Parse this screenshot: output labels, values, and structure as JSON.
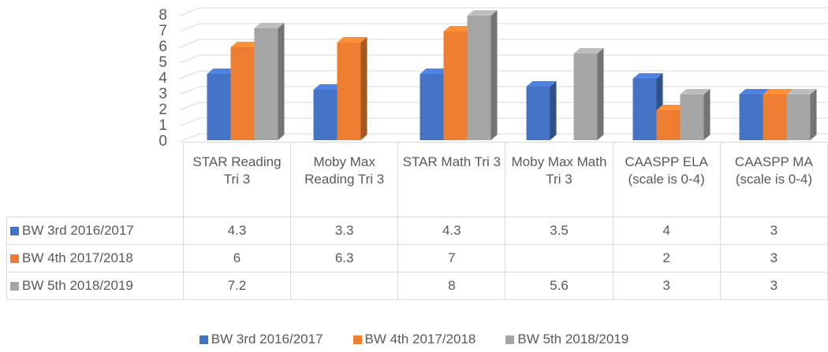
{
  "chart_data": {
    "type": "bar3d",
    "categories": [
      "STAR Reading Tri 3",
      "Moby Max Reading Tri 3",
      "STAR Math Tri 3",
      "Moby Max Math Tri 3",
      "CAASPP ELA (scale is 0-4)",
      "CAASPP MA (scale is 0-4)"
    ],
    "series": [
      {
        "name": "BW 3rd 2016/2017",
        "color": "#4472c4",
        "values": [
          4.3,
          3.3,
          4.3,
          3.5,
          4,
          3
        ]
      },
      {
        "name": "BW 4th 2017/2018",
        "color": "#ed7d31",
        "values": [
          6,
          6.3,
          7,
          null,
          2,
          3
        ]
      },
      {
        "name": "BW 5th 2018/2019",
        "color": "#a5a5a5",
        "values": [
          7.2,
          null,
          8,
          5.6,
          3,
          3
        ]
      }
    ],
    "ylim": [
      0,
      8
    ],
    "yticks": [
      0,
      1,
      2,
      3,
      4,
      5,
      6,
      7,
      8
    ],
    "grid": true,
    "legend": "bottom",
    "data_table": true
  }
}
